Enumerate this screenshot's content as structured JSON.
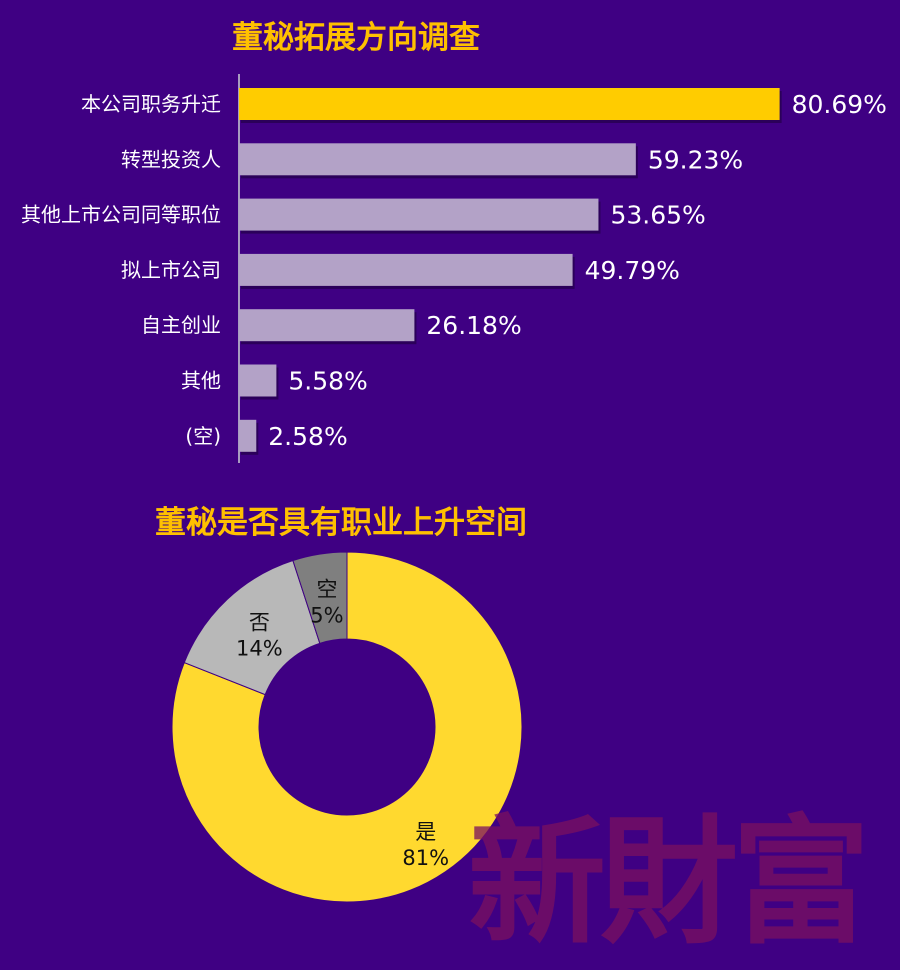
{
  "watermark": "新財富",
  "chart_data": [
    {
      "type": "bar",
      "orientation": "horizontal",
      "title": "董秘拓展方向调查",
      "categories": [
        "本公司职务升迁",
        "转型投资人",
        "其他上市公司同等职位",
        "拟上市公司",
        "自主创业",
        "其他",
        "(空)"
      ],
      "values": [
        80.69,
        59.23,
        53.65,
        49.79,
        26.18,
        5.58,
        2.58
      ],
      "value_labels": [
        "80.69%",
        "59.23%",
        "53.65%",
        "49.79%",
        "26.18%",
        "5.58%",
        "2.58%"
      ],
      "xlim": [
        0,
        100
      ],
      "grid": false,
      "legend": "none",
      "colors": {
        "highlight": "#ffcc00",
        "bar": "#b3a2c7",
        "axis": "#a89cc0"
      }
    },
    {
      "type": "pie",
      "style": "donut",
      "title": "董秘是否具有职业上升空间",
      "series": [
        {
          "label": "是",
          "value": 81,
          "value_label": "81%",
          "color": "#ffd92f"
        },
        {
          "label": "否",
          "value": 14,
          "value_label": "14%",
          "color": "#b8b8b8"
        },
        {
          "label": "空",
          "value": 5,
          "value_label": "5%",
          "color": "#7f7f7f"
        }
      ],
      "legend": "none"
    }
  ]
}
